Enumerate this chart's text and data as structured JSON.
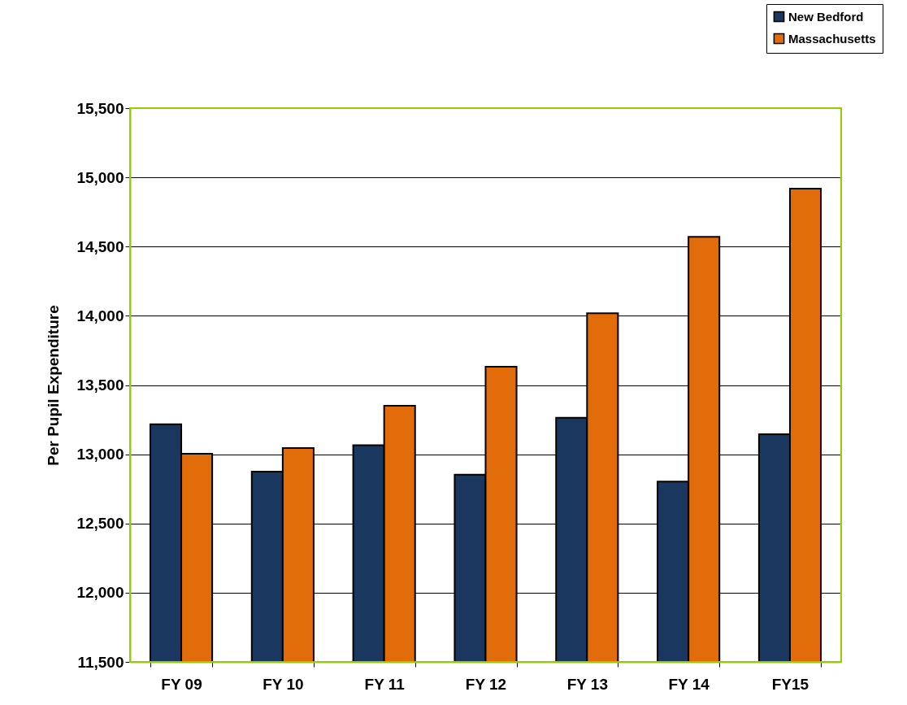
{
  "chart_data": {
    "type": "bar",
    "ylabel": "Per Pupil Expenditure",
    "categories": [
      "FY 09",
      "FY 10",
      "FY 11",
      "FY 12",
      "FY 13",
      "FY 14",
      "FY15"
    ],
    "series": [
      {
        "name": "New Bedford",
        "color": "#1a375f",
        "values": [
          13216,
          12874,
          13066,
          12853,
          13263,
          12803,
          13145
        ]
      },
      {
        "name": "Massachusetts",
        "color": "#e36c0a",
        "values": [
          13003,
          13045,
          13350,
          13632,
          14018,
          14571,
          14918
        ]
      }
    ],
    "ylim": [
      11500,
      15500
    ],
    "yticks": [
      {
        "value": 11500,
        "label": "11,500"
      },
      {
        "value": 12000,
        "label": "12,000"
      },
      {
        "value": 12500,
        "label": "12,500"
      },
      {
        "value": 13000,
        "label": "13,000"
      },
      {
        "value": 13500,
        "label": "13,500"
      },
      {
        "value": 14000,
        "label": "14,000"
      },
      {
        "value": 14500,
        "label": "14,500"
      },
      {
        "value": 15000,
        "label": "15,000"
      },
      {
        "value": 15500,
        "label": "15,500"
      }
    ],
    "grid": "y",
    "legend": "top right"
  }
}
